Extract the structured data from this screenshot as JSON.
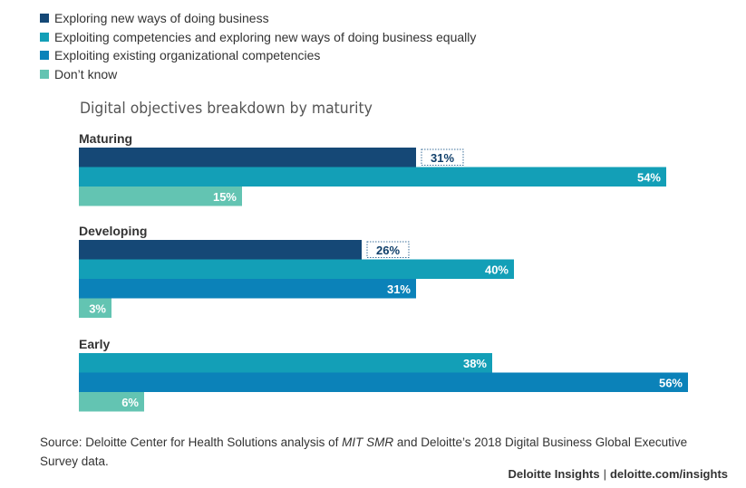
{
  "chart_data": {
    "type": "bar",
    "orientation": "horizontal",
    "title": "Digital objectives breakdown by maturity",
    "legend_position": "top-left",
    "value_unit": "%",
    "xlim": [
      0,
      56
    ],
    "legend": [
      {
        "name": "Exploring new ways of doing business",
        "color": "#154876"
      },
      {
        "name": "Exploiting competencies and exploring new ways of doing business equally",
        "color": "#139fb7"
      },
      {
        "name": "Exploiting existing organizational competencies",
        "color": "#0b82b9"
      },
      {
        "name": "Don’t know",
        "color": "#63c4b2"
      }
    ],
    "groups": [
      {
        "name": "Maturing",
        "bars": [
          {
            "series": "Exploring new ways of doing business",
            "value": 31,
            "label": "31%",
            "label_outside": true
          },
          {
            "series": "Exploiting competencies and exploring new ways of doing business equally",
            "value": 54,
            "label": "54%"
          },
          {
            "series": "Don’t know",
            "value": 15,
            "label": "15%"
          }
        ]
      },
      {
        "name": "Developing",
        "bars": [
          {
            "series": "Exploring new ways of doing business",
            "value": 26,
            "label": "26%",
            "label_outside": true
          },
          {
            "series": "Exploiting competencies and exploring new ways of doing business equally",
            "value": 40,
            "label": "40%"
          },
          {
            "series": "Exploiting existing organizational competencies",
            "value": 31,
            "label": "31%"
          },
          {
            "series": "Don’t know",
            "value": 3,
            "label": "3%"
          }
        ]
      },
      {
        "name": "Early",
        "bars": [
          {
            "series": "Exploiting competencies and exploring new ways of doing business equally",
            "value": 38,
            "label": "38%"
          },
          {
            "series": "Exploiting existing organizational competencies",
            "value": 56,
            "label": "56%"
          },
          {
            "series": "Don’t know",
            "value": 6,
            "label": "6%"
          }
        ]
      }
    ]
  },
  "source": {
    "prefix": "Source: Deloitte Center for Health Solutions analysis of ",
    "italic": "MIT SMR",
    "suffix": " and Deloitte’s 2018 Digital Business Global Executive Survey data."
  },
  "footer": {
    "brand": "Deloitte Insights",
    "separator": "|",
    "url": "deloitte.com/insights"
  }
}
